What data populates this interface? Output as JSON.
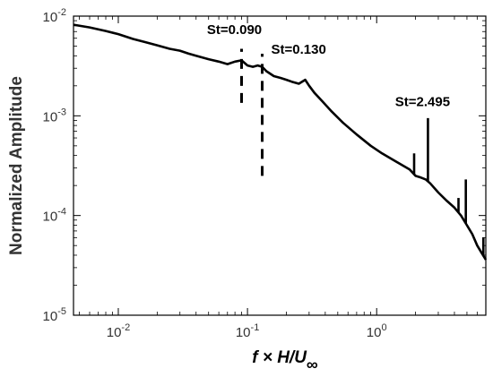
{
  "chart_data": {
    "type": "line",
    "title": "",
    "xlabel_parts": {
      "main": "f × H/U",
      "subscript": "∞"
    },
    "ylabel": "Normalized Amplitude",
    "x_scale": "log",
    "y_scale": "log",
    "xlim": [
      0.0045,
      7.0
    ],
    "ylim": [
      1e-05,
      0.01
    ],
    "grid": false,
    "legend": "none",
    "x_ticks": [
      {
        "value": 0.01,
        "base": "10",
        "exp": "-2"
      },
      {
        "value": 0.1,
        "base": "10",
        "exp": "-1"
      },
      {
        "value": 1,
        "base": "10",
        "exp": "0"
      }
    ],
    "y_ticks": [
      {
        "value": 1e-05,
        "base": "10",
        "exp": "-5"
      },
      {
        "value": 0.0001,
        "base": "10",
        "exp": "-4"
      },
      {
        "value": 0.001,
        "base": "10",
        "exp": "-3"
      },
      {
        "value": 0.01,
        "base": "10",
        "exp": "-2"
      }
    ],
    "series": [
      {
        "color": "#000000",
        "x": [
          0.0045,
          0.006,
          0.008,
          0.01,
          0.013,
          0.016,
          0.02,
          0.025,
          0.03,
          0.035,
          0.04,
          0.05,
          0.06,
          0.07,
          0.08,
          0.09,
          0.1,
          0.11,
          0.12,
          0.13,
          0.14,
          0.16,
          0.18,
          0.2,
          0.22,
          0.25,
          0.28,
          0.3,
          0.33,
          0.38,
          0.45,
          0.55,
          0.7,
          0.9,
          1.1,
          1.4,
          1.8,
          2.0,
          2.2,
          2.4,
          2.6,
          3.0,
          3.5,
          4.0,
          4.5,
          5.0,
          5.5,
          6.0,
          6.5,
          7.0
        ],
        "y": [
          0.0082,
          0.0077,
          0.0071,
          0.0066,
          0.0059,
          0.0055,
          0.0051,
          0.0047,
          0.0045,
          0.0042,
          0.004,
          0.0037,
          0.0035,
          0.0033,
          0.0035,
          0.0036,
          0.0032,
          0.0031,
          0.0032,
          0.0031,
          0.0028,
          0.0025,
          0.0024,
          0.0023,
          0.0022,
          0.0021,
          0.0023,
          0.002,
          0.0017,
          0.0014,
          0.0011,
          0.00085,
          0.00065,
          0.0005,
          0.00042,
          0.00035,
          0.00029,
          0.00025,
          0.00024,
          0.00023,
          0.00021,
          0.00017,
          0.00014,
          0.00012,
          0.0001,
          8e-05,
          6.5e-05,
          5e-05,
          4.2e-05,
          3.6e-05
        ]
      }
    ],
    "peaks": [
      {
        "x": 1.95,
        "y": 0.00042
      },
      {
        "x": 2.495,
        "y": 0.00095
      },
      {
        "x": 4.3,
        "y": 0.00015
      },
      {
        "x": 4.9,
        "y": 0.00023
      },
      {
        "x": 6.7,
        "y": 6e-05
      }
    ],
    "markers": [
      {
        "x": 0.09,
        "y_low": 0.00135,
        "y_high": 0.0047,
        "style": "dashed"
      },
      {
        "x": 0.13,
        "y_low": 0.00025,
        "y_high": 0.0042,
        "style": "dashed"
      }
    ],
    "annotations": [
      {
        "text": "St=0.090",
        "x": 0.09,
        "y": 0.0066
      },
      {
        "text": "St=0.130",
        "x": 0.13,
        "y": 0.0042
      },
      {
        "text": "St=2.495",
        "x": 2.495,
        "y": 0.00125
      }
    ]
  }
}
